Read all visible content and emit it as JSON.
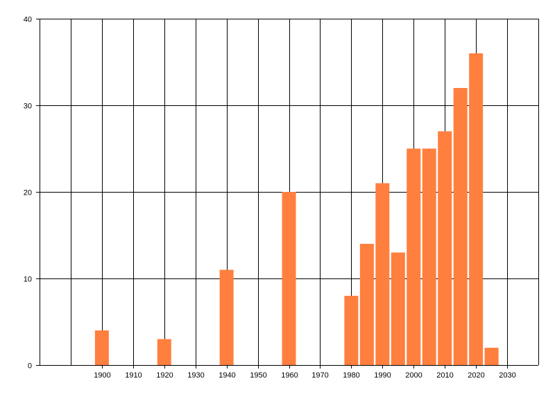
{
  "chart_data": {
    "type": "bar",
    "x": [
      1900,
      1920,
      1940,
      1960,
      1980,
      1985,
      1990,
      1995,
      2000,
      2005,
      2010,
      2015,
      2020,
      2025
    ],
    "values": [
      4,
      3,
      11,
      20,
      8,
      14,
      21,
      13,
      25,
      25,
      27,
      32,
      36,
      2
    ],
    "x_ticks": [
      1900,
      1910,
      1920,
      1930,
      1940,
      1950,
      1960,
      1970,
      1980,
      1990,
      2000,
      2010,
      2020,
      2030
    ],
    "y_ticks": [
      0,
      10,
      20,
      30,
      40
    ],
    "xlim": [
      1880,
      2040
    ],
    "ylim": [
      0,
      40
    ],
    "grid": true,
    "bar_color": "#ff7f3f",
    "title": "",
    "xlabel": "",
    "ylabel": ""
  }
}
